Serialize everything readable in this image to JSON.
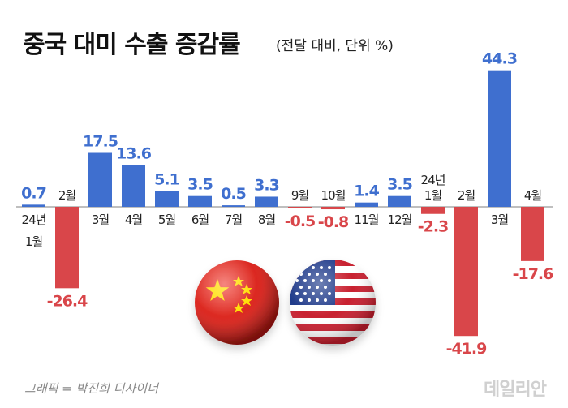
{
  "title": "중국 대미 수출 증감률",
  "subtitle": "(전달 대비, 단위 %)",
  "credit": "그래픽 = 박진희 디자이너",
  "logo": "데일리안",
  "colors": {
    "positive": "#3f6fcf",
    "negative": "#d9464a",
    "baseline": "#bfbfbf"
  },
  "illustrations": [
    "china-flag-ball",
    "us-flag-ball"
  ],
  "chart_data": {
    "type": "bar",
    "xlabel": "",
    "ylabel": "",
    "categories": [
      {
        "year": "24년",
        "month": "1월"
      },
      {
        "year": "",
        "month": "2월"
      },
      {
        "year": "",
        "month": "3월"
      },
      {
        "year": "",
        "month": "4월"
      },
      {
        "year": "",
        "month": "5월"
      },
      {
        "year": "",
        "month": "6월"
      },
      {
        "year": "",
        "month": "7월"
      },
      {
        "year": "",
        "month": "8월"
      },
      {
        "year": "",
        "month": "9월"
      },
      {
        "year": "",
        "month": "10월"
      },
      {
        "year": "",
        "month": "11월"
      },
      {
        "year": "",
        "month": "12월"
      },
      {
        "year": "24년",
        "month": "1월"
      },
      {
        "year": "",
        "month": "2월"
      },
      {
        "year": "",
        "month": "3월"
      },
      {
        "year": "",
        "month": "4월"
      }
    ],
    "values": [
      0.7,
      -26.4,
      17.5,
      13.6,
      5.1,
      3.5,
      0.5,
      3.3,
      -0.5,
      -0.8,
      1.4,
      3.5,
      -2.3,
      -41.9,
      44.3,
      -17.6
    ],
    "labels": [
      "0.7",
      "-26.4",
      "17.5",
      "13.6",
      "5.1",
      "3.5",
      "0.5",
      "3.3",
      "-0.5",
      "-0.8",
      "1.4",
      "3.5",
      "-2.3",
      "-41.9",
      "44.3",
      "-17.6"
    ],
    "grid": false,
    "legend": "none"
  }
}
